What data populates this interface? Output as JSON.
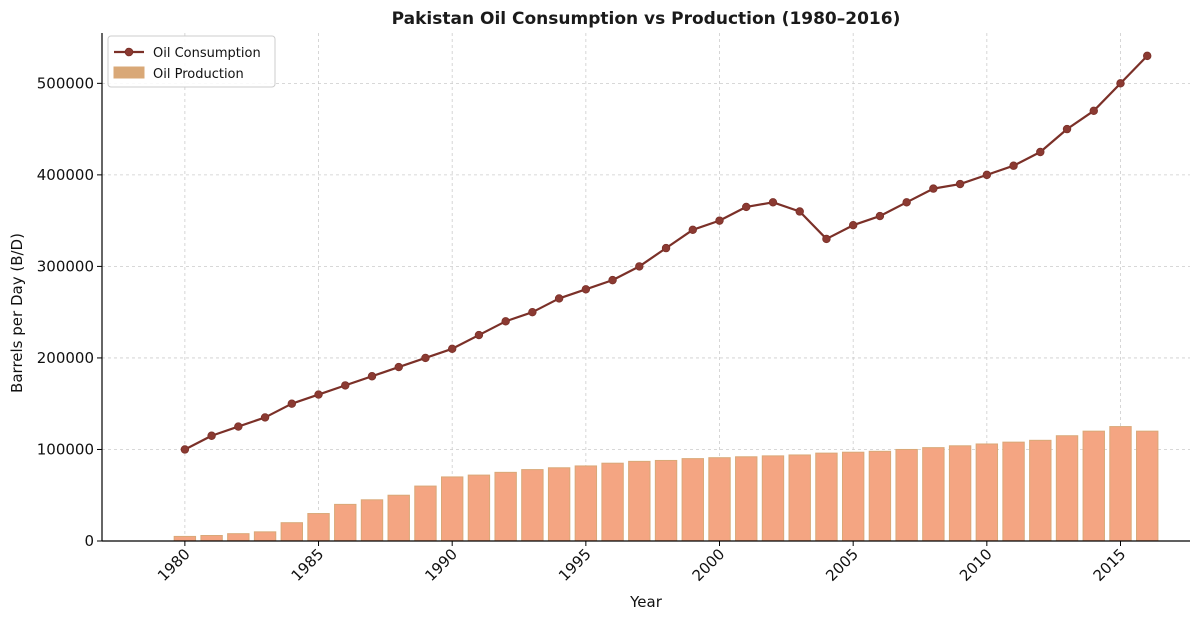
{
  "chart_data": {
    "type": "bar+line",
    "title": "Pakistan Oil Consumption vs Production (1980–2016)",
    "xlabel": "Year",
    "ylabel": "Barrels per Day (B/D)",
    "xlim": [
      1976.9,
      2017.6
    ],
    "ylim": [
      0,
      555000
    ],
    "x_ticks": [
      1980,
      1985,
      1990,
      1995,
      2000,
      2005,
      2010,
      2015
    ],
    "x_tick_labels": [
      "1980",
      "1985",
      "1990",
      "1995",
      "2000",
      "2005",
      "2010",
      "2015"
    ],
    "y_ticks": [
      0,
      100000,
      200000,
      300000,
      400000,
      500000
    ],
    "y_tick_labels": [
      "0",
      "100000",
      "200000",
      "300000",
      "400000",
      "500000"
    ],
    "grid": true,
    "legend_position": "top-left",
    "x": [
      1980,
      1981,
      1982,
      1983,
      1984,
      1985,
      1986,
      1987,
      1988,
      1989,
      1990,
      1991,
      1992,
      1993,
      1994,
      1995,
      1996,
      1997,
      1998,
      1999,
      2000,
      2001,
      2002,
      2003,
      2004,
      2005,
      2006,
      2007,
      2008,
      2009,
      2010,
      2011,
      2012,
      2013,
      2014,
      2015,
      2016
    ],
    "series": [
      {
        "name": "Oil Consumption",
        "kind": "line",
        "color": "#7B3028",
        "marker_color": "#8B3A32",
        "values": [
          100000,
          115000,
          125000,
          135000,
          150000,
          160000,
          170000,
          180000,
          190000,
          200000,
          210000,
          225000,
          240000,
          250000,
          265000,
          275000,
          285000,
          300000,
          320000,
          340000,
          350000,
          365000,
          370000,
          360000,
          330000,
          345000,
          355000,
          370000,
          385000,
          390000,
          400000,
          410000,
          425000,
          450000,
          470000,
          500000,
          530000
        ]
      },
      {
        "name": "Oil Production",
        "kind": "bar",
        "color": "#F4A582",
        "edge_color": "#D9A877",
        "values": [
          5000,
          6000,
          8000,
          10000,
          20000,
          30000,
          40000,
          45000,
          50000,
          60000,
          70000,
          72000,
          75000,
          78000,
          80000,
          82000,
          85000,
          87000,
          88000,
          90000,
          91000,
          92000,
          93000,
          94000,
          96000,
          97000,
          98000,
          100000,
          102000,
          104000,
          106000,
          108000,
          110000,
          115000,
          120000,
          125000,
          120000
        ]
      }
    ]
  }
}
